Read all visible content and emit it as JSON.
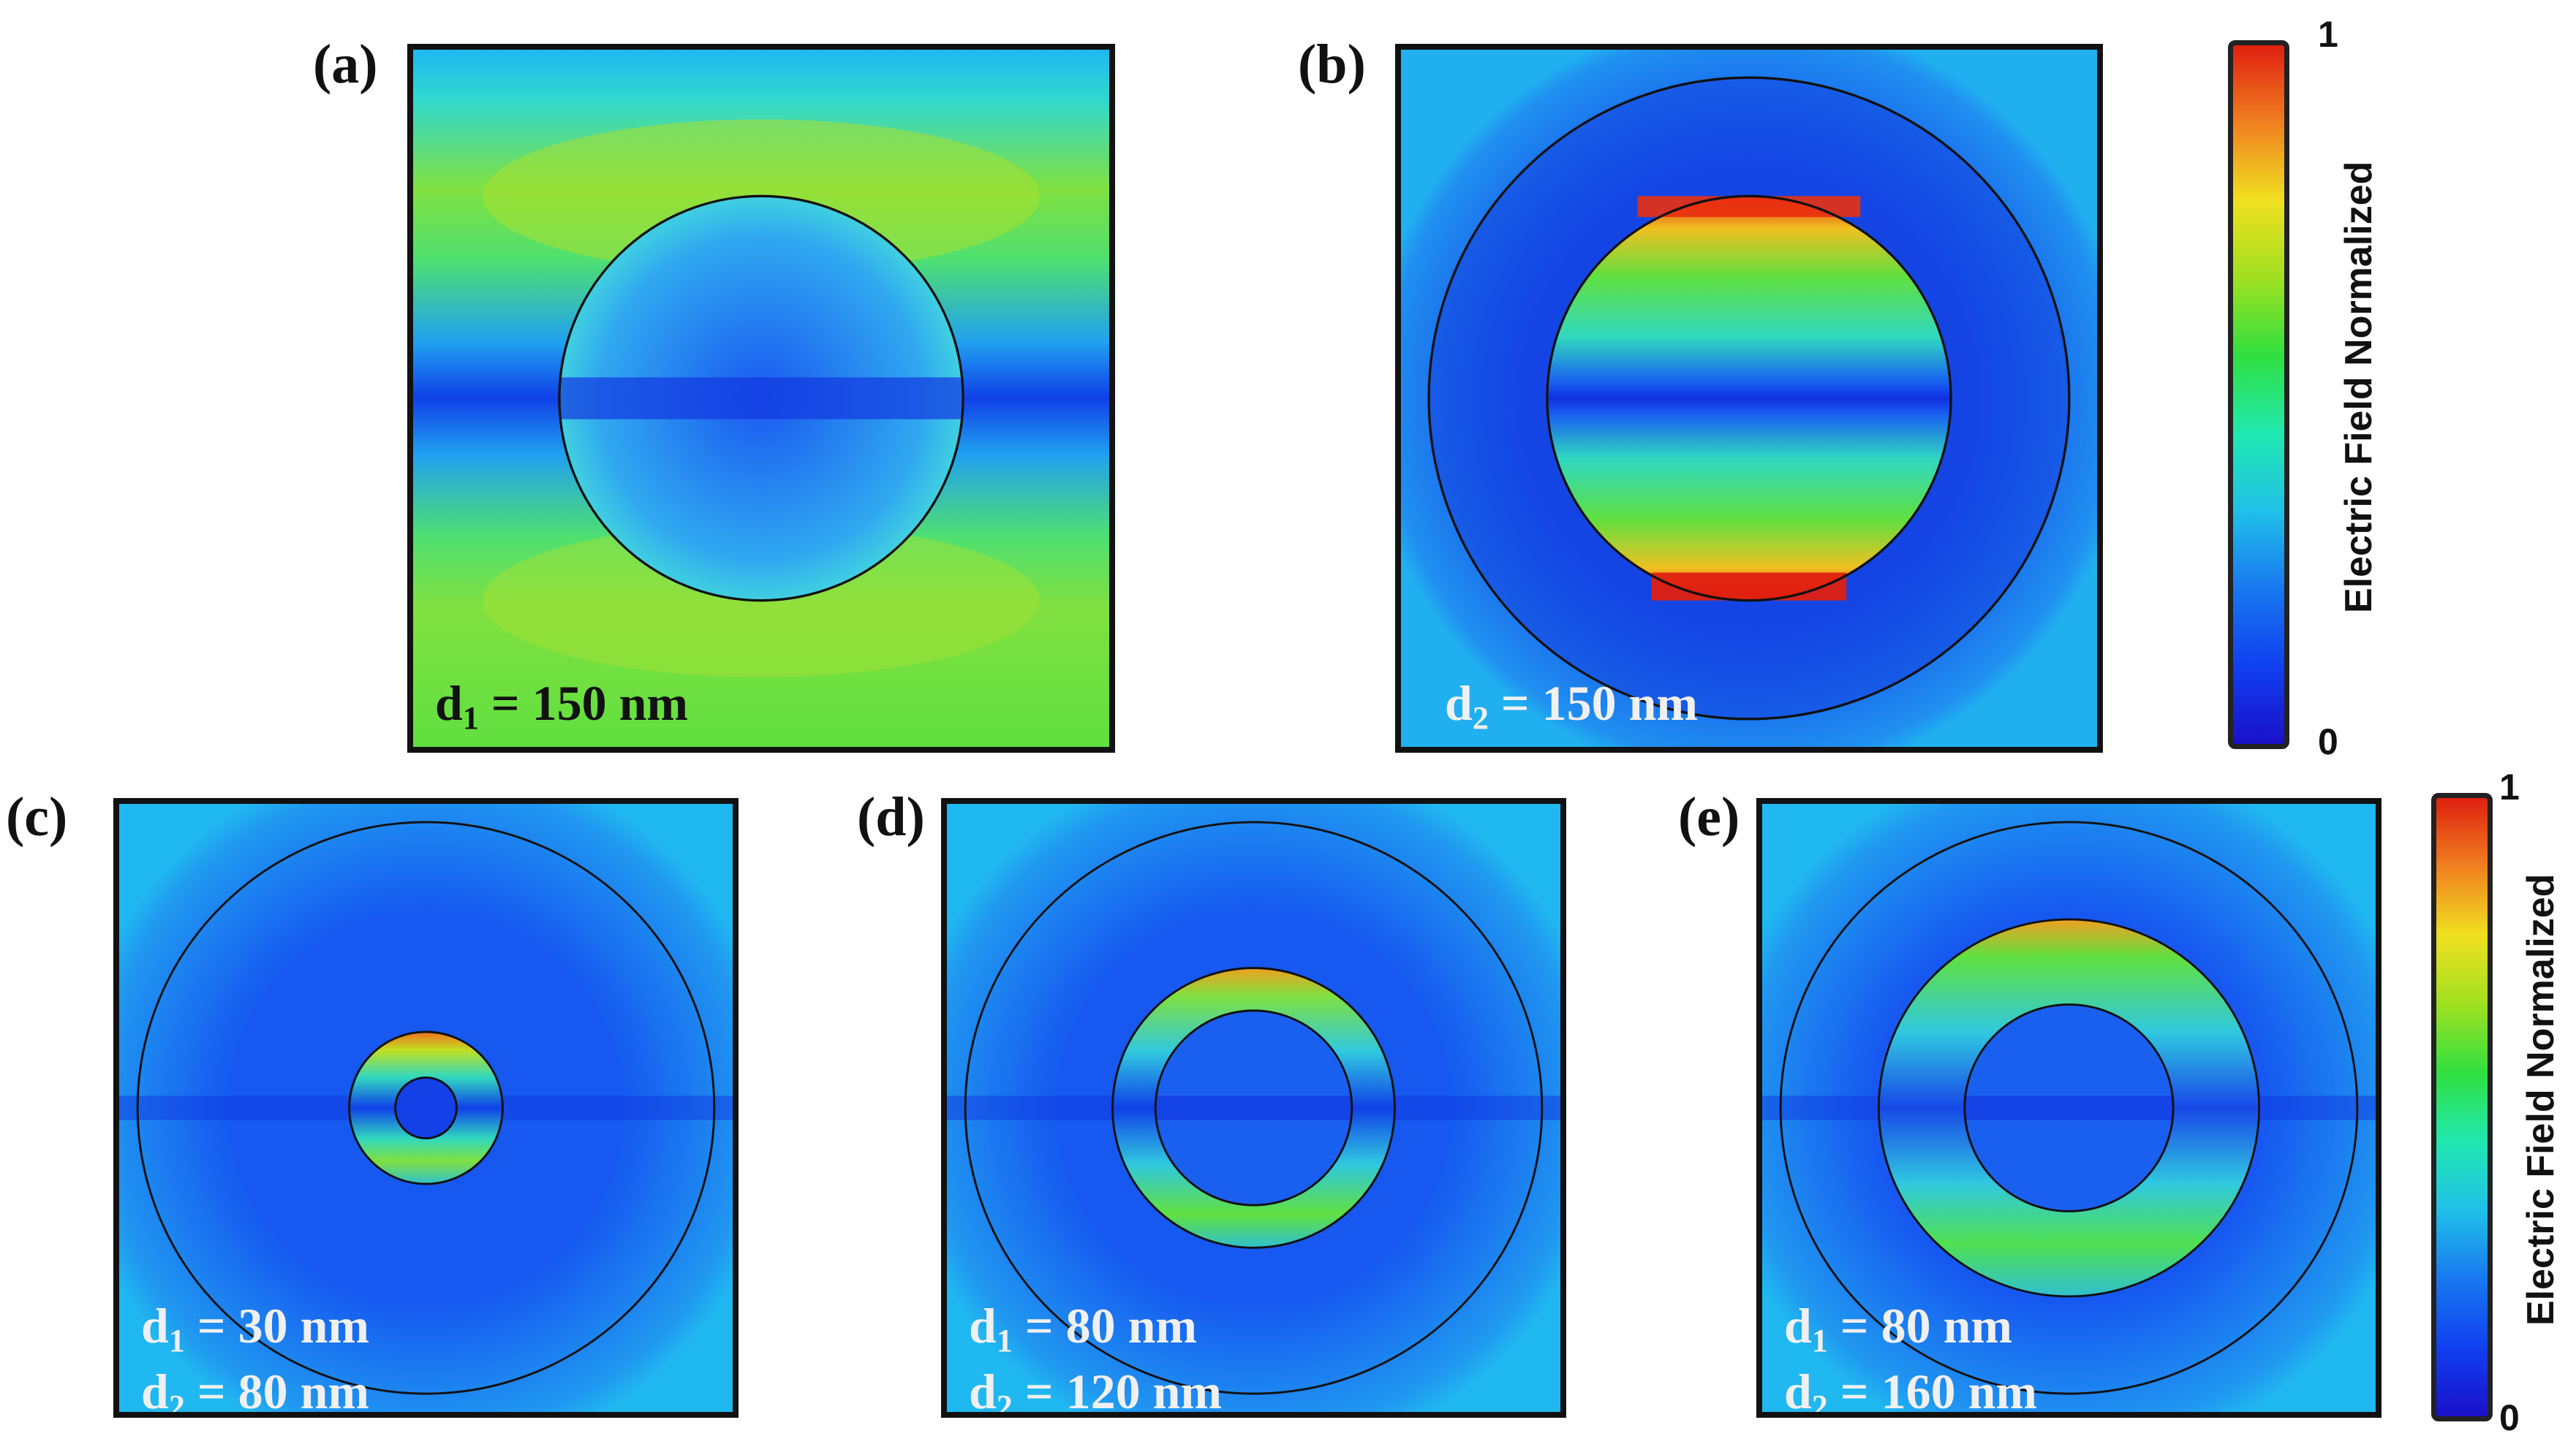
{
  "panels": [
    {
      "letter": "(a)",
      "labels": [
        {
          "sym": "d",
          "sub": "1",
          "rest": " = 150 nm"
        }
      ]
    },
    {
      "letter": "(b)",
      "labels": [
        {
          "sym": "d",
          "sub": "2",
          "rest": " = 150 nm"
        }
      ]
    },
    {
      "letter": "(c)",
      "labels": [
        {
          "sym": "d",
          "sub": "1",
          "rest": " = 30 nm"
        },
        {
          "sym": "d",
          "sub": "2",
          "rest": " = 80 nm"
        }
      ]
    },
    {
      "letter": "(d)",
      "labels": [
        {
          "sym": "d",
          "sub": "1",
          "rest": " = 80 nm"
        },
        {
          "sym": "d",
          "sub": "2",
          "rest": " = 120 nm"
        }
      ]
    },
    {
      "letter": "(e)",
      "labels": [
        {
          "sym": "d",
          "sub": "1",
          "rest": " = 80 nm"
        },
        {
          "sym": "d",
          "sub": "2",
          "rest": " = 160 nm"
        }
      ]
    }
  ],
  "colorbars": [
    {
      "max_label": "1",
      "min_label": "0",
      "title": "Electric Field Normalized"
    },
    {
      "max_label": "1",
      "min_label": "0",
      "title": "Electric Field Normalized"
    }
  ],
  "colormap": [
    "#1a10c8",
    "#1040f0",
    "#1878f0",
    "#20c0e8",
    "#20e8b0",
    "#30e040",
    "#a0e020",
    "#f0e020",
    "#f08020",
    "#e02010"
  ]
}
